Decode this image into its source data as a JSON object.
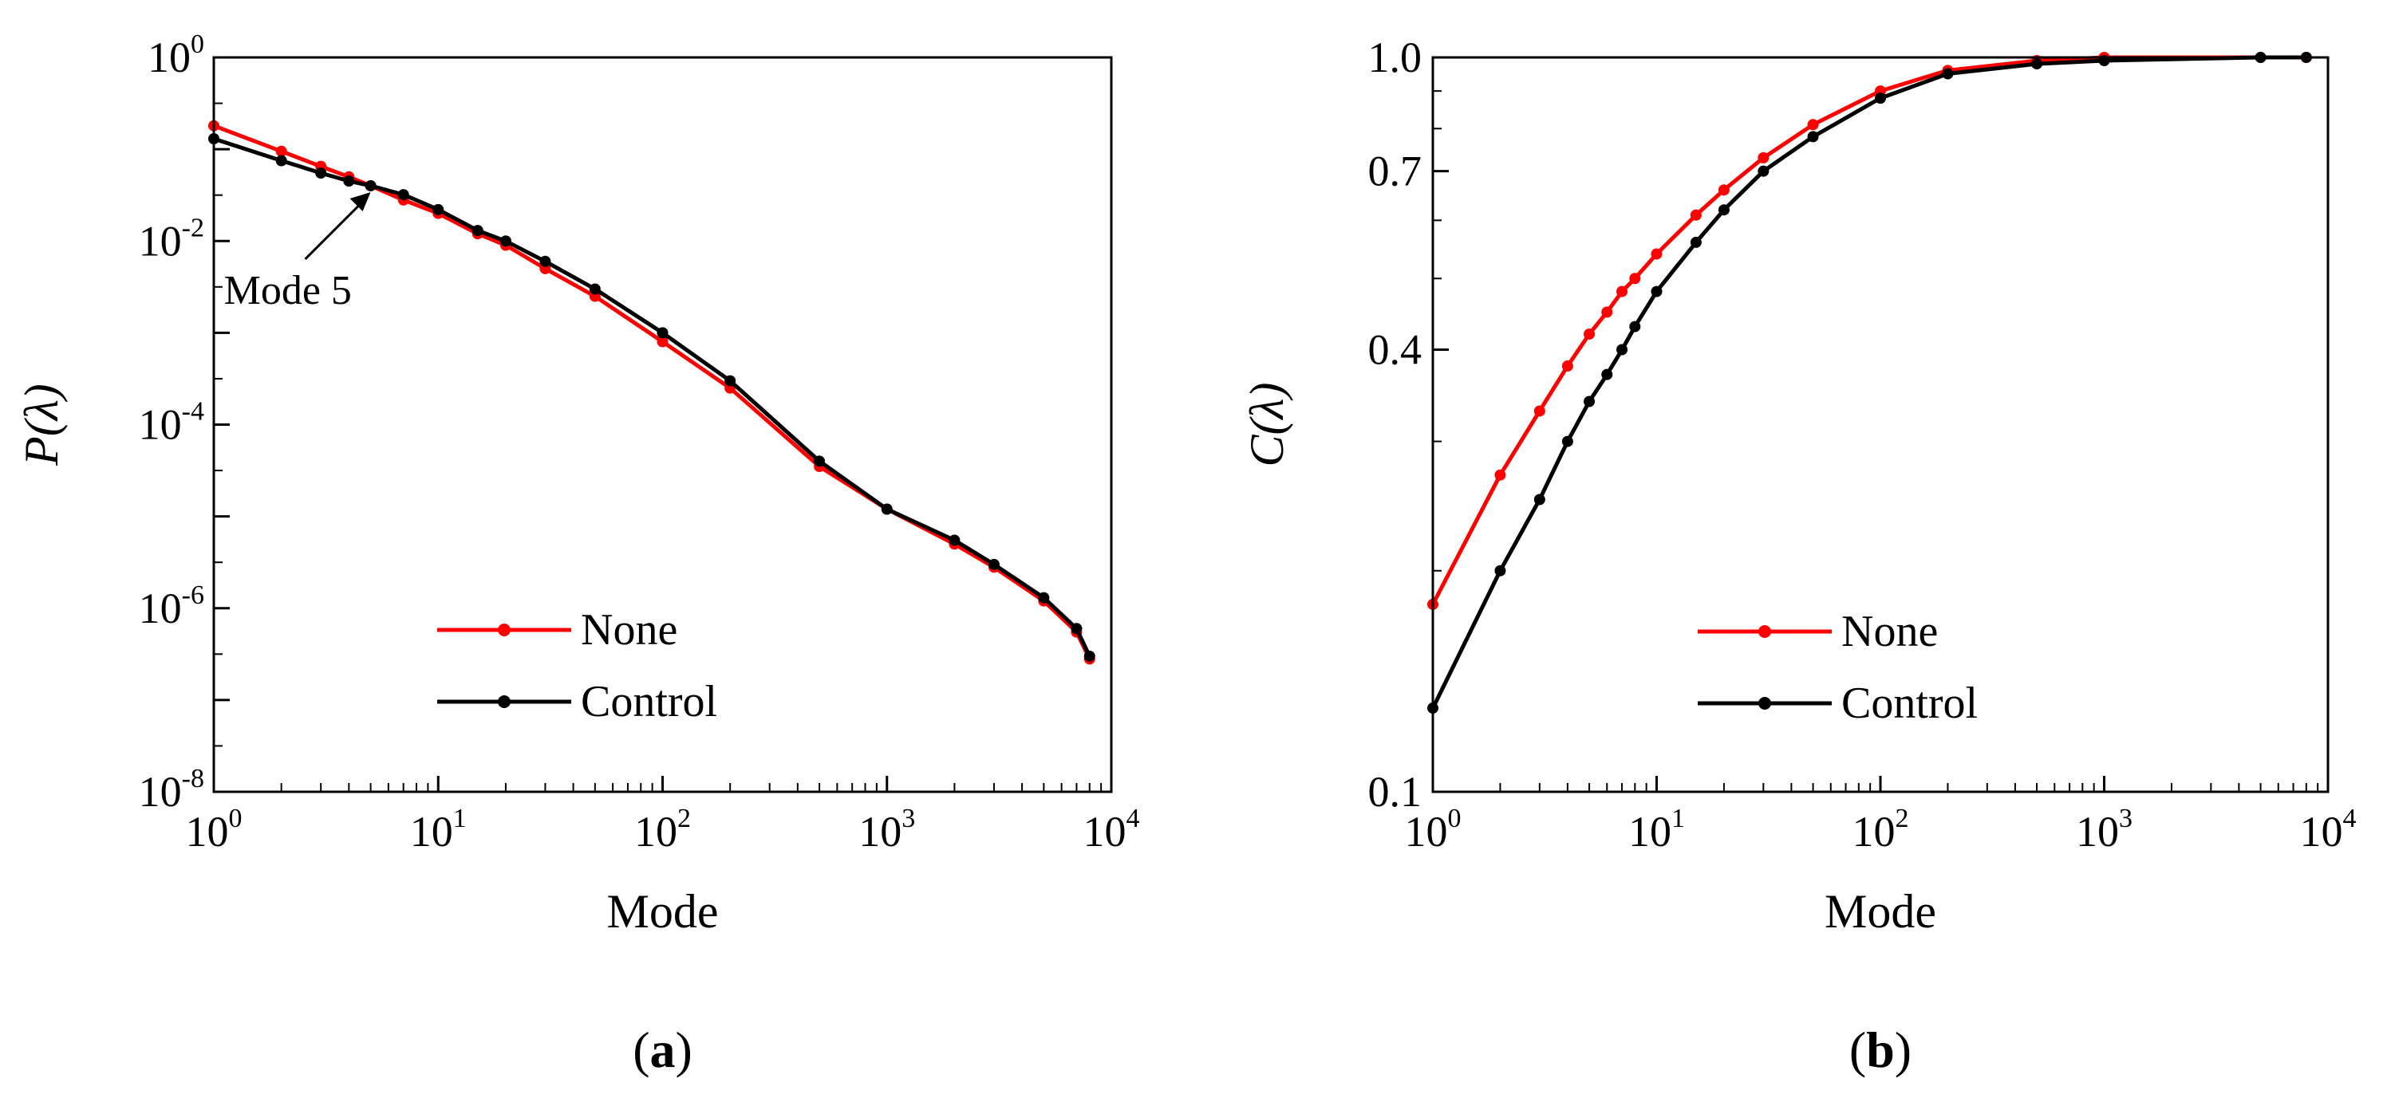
{
  "colors": {
    "none": "#ff0000",
    "control": "#000000"
  },
  "chart_data": [
    {
      "type": "line",
      "panel_label": "a",
      "xlabel": "Mode",
      "ylabel": "P(λ)",
      "xscale": "log",
      "yscale": "log",
      "xlim": [
        1,
        10000
      ],
      "ylim": [
        1e-08,
        1
      ],
      "x_ticks": [
        {
          "base": "10",
          "exp": "0"
        },
        {
          "base": "10",
          "exp": "1"
        },
        {
          "base": "10",
          "exp": "2"
        },
        {
          "base": "10",
          "exp": "3"
        },
        {
          "base": "10",
          "exp": "4"
        }
      ],
      "y_ticks": [
        {
          "base": "10",
          "exp": "0"
        },
        {
          "base": "10",
          "exp": "-2"
        },
        {
          "base": "10",
          "exp": "-4"
        },
        {
          "base": "10",
          "exp": "-6"
        },
        {
          "base": "10",
          "exp": "-8"
        }
      ],
      "legend": {
        "placement": "lower-center",
        "entries": [
          "None",
          "Control"
        ]
      },
      "annotation": {
        "text": "Mode 5",
        "x": 5,
        "y": 0.04
      },
      "series": [
        {
          "name": "None",
          "color": "#ff0000",
          "x": [
            1,
            2,
            3,
            4,
            5,
            7,
            10,
            15,
            20,
            30,
            50,
            100,
            200,
            500,
            1000,
            2000,
            3000,
            5000,
            7000,
            8000
          ],
          "y": [
            0.18,
            0.095,
            0.065,
            0.05,
            0.04,
            0.028,
            0.02,
            0.012,
            0.009,
            0.005,
            0.0025,
            0.0008,
            0.00025,
            3.5e-05,
            1.2e-05,
            5e-06,
            2.8e-06,
            1.2e-06,
            5.5e-07,
            2.8e-07
          ]
        },
        {
          "name": "Control",
          "color": "#000000",
          "x": [
            1,
            2,
            3,
            4,
            5,
            7,
            10,
            15,
            20,
            30,
            50,
            100,
            200,
            500,
            1000,
            2000,
            3000,
            5000,
            7000,
            8000
          ],
          "y": [
            0.13,
            0.075,
            0.055,
            0.045,
            0.04,
            0.032,
            0.022,
            0.013,
            0.01,
            0.006,
            0.003,
            0.001,
            0.0003,
            4e-05,
            1.2e-05,
            5.5e-06,
            3e-06,
            1.3e-06,
            6e-07,
            3e-07
          ]
        }
      ]
    },
    {
      "type": "line",
      "panel_label": "b",
      "xlabel": "Mode",
      "ylabel": "C(λ)",
      "xscale": "log",
      "yscale": "log",
      "xlim": [
        1,
        10000
      ],
      "ylim": [
        0.1,
        1.0
      ],
      "x_ticks": [
        {
          "base": "10",
          "exp": "0"
        },
        {
          "base": "10",
          "exp": "1"
        },
        {
          "base": "10",
          "exp": "2"
        },
        {
          "base": "10",
          "exp": "3"
        },
        {
          "base": "10",
          "exp": "4"
        }
      ],
      "y_ticks": [
        {
          "value": 1.0,
          "label": "1.0"
        },
        {
          "value": 0.7,
          "label": "0.7"
        },
        {
          "value": 0.4,
          "label": "0.4"
        },
        {
          "value": 0.1,
          "label": "0.1"
        }
      ],
      "legend": {
        "placement": "lower-center",
        "entries": [
          "None",
          "Control"
        ]
      },
      "series": [
        {
          "name": "None",
          "color": "#ff0000",
          "x": [
            1,
            2,
            3,
            4,
            5,
            6,
            7,
            8,
            10,
            15,
            20,
            30,
            50,
            100,
            200,
            500,
            1000,
            5000,
            8000
          ],
          "y": [
            0.18,
            0.27,
            0.33,
            0.38,
            0.42,
            0.45,
            0.48,
            0.5,
            0.54,
            0.61,
            0.66,
            0.73,
            0.81,
            0.9,
            0.96,
            0.99,
            1.0,
            1.0,
            1.0
          ]
        },
        {
          "name": "Control",
          "color": "#000000",
          "x": [
            1,
            2,
            3,
            4,
            5,
            6,
            7,
            8,
            10,
            15,
            20,
            30,
            50,
            100,
            200,
            500,
            1000,
            5000,
            8000
          ],
          "y": [
            0.13,
            0.2,
            0.25,
            0.3,
            0.34,
            0.37,
            0.4,
            0.43,
            0.48,
            0.56,
            0.62,
            0.7,
            0.78,
            0.88,
            0.95,
            0.98,
            0.99,
            1.0,
            1.0
          ]
        }
      ]
    }
  ]
}
